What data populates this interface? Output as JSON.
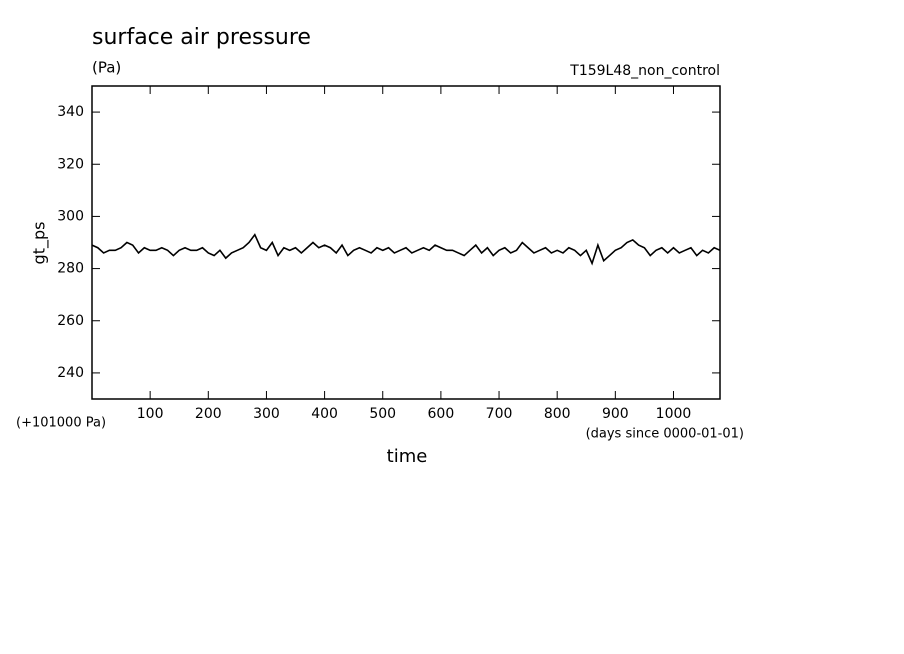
{
  "chart_data": {
    "type": "line",
    "title": "surface air pressure",
    "subtitle": "(Pa)",
    "run_label": "T159L48_non_control",
    "xlabel": "time",
    "ylabel": "gt_ps",
    "y_offset_label": "(+101000 Pa)",
    "x_units_label": "(days since 0000-01-01)",
    "xlim": [
      0,
      1080
    ],
    "ylim": [
      230,
      350
    ],
    "xticks": [
      100,
      200,
      300,
      400,
      500,
      600,
      700,
      800,
      900,
      1000
    ],
    "yticks": [
      240,
      260,
      280,
      300,
      320,
      340
    ],
    "color": "#000000",
    "x": [
      0,
      10,
      20,
      30,
      40,
      50,
      60,
      70,
      80,
      90,
      100,
      110,
      120,
      130,
      140,
      150,
      160,
      170,
      180,
      190,
      200,
      210,
      220,
      230,
      240,
      250,
      260,
      270,
      280,
      290,
      300,
      310,
      320,
      330,
      340,
      350,
      360,
      370,
      380,
      390,
      400,
      410,
      420,
      430,
      440,
      450,
      460,
      470,
      480,
      490,
      500,
      510,
      520,
      530,
      540,
      550,
      560,
      570,
      580,
      590,
      600,
      610,
      620,
      630,
      640,
      650,
      660,
      670,
      680,
      690,
      700,
      710,
      720,
      730,
      740,
      750,
      760,
      770,
      780,
      790,
      800,
      810,
      820,
      830,
      840,
      850,
      860,
      870,
      880,
      890,
      900,
      910,
      920,
      930,
      940,
      950,
      960,
      970,
      980,
      990,
      1000,
      1010,
      1020,
      1030,
      1040,
      1050,
      1060,
      1070,
      1080
    ],
    "values": [
      289,
      288,
      286,
      287,
      287,
      288,
      290,
      289,
      286,
      288,
      287,
      287,
      288,
      287,
      285,
      287,
      288,
      287,
      287,
      288,
      286,
      285,
      287,
      284,
      286,
      287,
      288,
      290,
      293,
      288,
      287,
      290,
      285,
      288,
      287,
      288,
      286,
      288,
      290,
      288,
      289,
      288,
      286,
      289,
      285,
      287,
      288,
      287,
      286,
      288,
      287,
      288,
      286,
      287,
      288,
      286,
      287,
      288,
      287,
      289,
      288,
      287,
      287,
      286,
      285,
      287,
      289,
      286,
      288,
      285,
      287,
      288,
      286,
      287,
      290,
      288,
      286,
      287,
      288,
      286,
      287,
      286,
      288,
      287,
      285,
      287,
      282,
      289,
      283,
      285,
      287,
      288,
      290,
      291,
      289,
      288,
      285,
      287,
      288,
      286,
      288,
      286,
      287,
      288,
      285,
      287,
      286,
      288,
      287
    ]
  }
}
